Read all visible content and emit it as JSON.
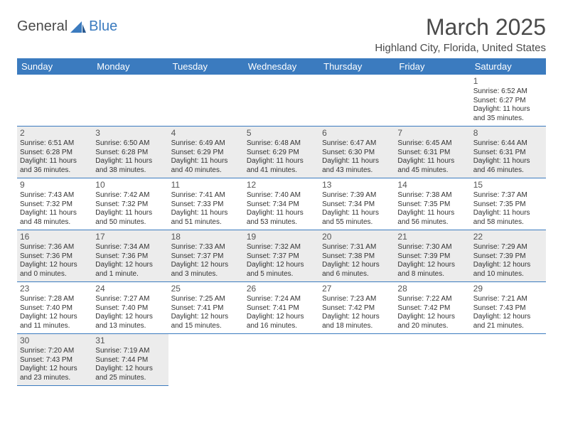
{
  "logo": {
    "part1": "General",
    "part2": "Blue"
  },
  "title": "March 2025",
  "location": "Highland City, Florida, United States",
  "header_bg": "#3b7bbf",
  "header_fg": "#ffffff",
  "shaded_bg": "#ececec",
  "border_color": "#3b7bbf",
  "days": [
    "Sunday",
    "Monday",
    "Tuesday",
    "Wednesday",
    "Thursday",
    "Friday",
    "Saturday"
  ],
  "weeks": [
    [
      null,
      null,
      null,
      null,
      null,
      null,
      {
        "n": "1",
        "sr": "6:52 AM",
        "ss": "6:27 PM",
        "dl": "11 hours and 35 minutes."
      }
    ],
    [
      {
        "n": "2",
        "sr": "6:51 AM",
        "ss": "6:28 PM",
        "dl": "11 hours and 36 minutes."
      },
      {
        "n": "3",
        "sr": "6:50 AM",
        "ss": "6:28 PM",
        "dl": "11 hours and 38 minutes."
      },
      {
        "n": "4",
        "sr": "6:49 AM",
        "ss": "6:29 PM",
        "dl": "11 hours and 40 minutes."
      },
      {
        "n": "5",
        "sr": "6:48 AM",
        "ss": "6:29 PM",
        "dl": "11 hours and 41 minutes."
      },
      {
        "n": "6",
        "sr": "6:47 AM",
        "ss": "6:30 PM",
        "dl": "11 hours and 43 minutes."
      },
      {
        "n": "7",
        "sr": "6:45 AM",
        "ss": "6:31 PM",
        "dl": "11 hours and 45 minutes."
      },
      {
        "n": "8",
        "sr": "6:44 AM",
        "ss": "6:31 PM",
        "dl": "11 hours and 46 minutes."
      }
    ],
    [
      {
        "n": "9",
        "sr": "7:43 AM",
        "ss": "7:32 PM",
        "dl": "11 hours and 48 minutes."
      },
      {
        "n": "10",
        "sr": "7:42 AM",
        "ss": "7:32 PM",
        "dl": "11 hours and 50 minutes."
      },
      {
        "n": "11",
        "sr": "7:41 AM",
        "ss": "7:33 PM",
        "dl": "11 hours and 51 minutes."
      },
      {
        "n": "12",
        "sr": "7:40 AM",
        "ss": "7:34 PM",
        "dl": "11 hours and 53 minutes."
      },
      {
        "n": "13",
        "sr": "7:39 AM",
        "ss": "7:34 PM",
        "dl": "11 hours and 55 minutes."
      },
      {
        "n": "14",
        "sr": "7:38 AM",
        "ss": "7:35 PM",
        "dl": "11 hours and 56 minutes."
      },
      {
        "n": "15",
        "sr": "7:37 AM",
        "ss": "7:35 PM",
        "dl": "11 hours and 58 minutes."
      }
    ],
    [
      {
        "n": "16",
        "sr": "7:36 AM",
        "ss": "7:36 PM",
        "dl": "12 hours and 0 minutes."
      },
      {
        "n": "17",
        "sr": "7:34 AM",
        "ss": "7:36 PM",
        "dl": "12 hours and 1 minute."
      },
      {
        "n": "18",
        "sr": "7:33 AM",
        "ss": "7:37 PM",
        "dl": "12 hours and 3 minutes."
      },
      {
        "n": "19",
        "sr": "7:32 AM",
        "ss": "7:37 PM",
        "dl": "12 hours and 5 minutes."
      },
      {
        "n": "20",
        "sr": "7:31 AM",
        "ss": "7:38 PM",
        "dl": "12 hours and 6 minutes."
      },
      {
        "n": "21",
        "sr": "7:30 AM",
        "ss": "7:39 PM",
        "dl": "12 hours and 8 minutes."
      },
      {
        "n": "22",
        "sr": "7:29 AM",
        "ss": "7:39 PM",
        "dl": "12 hours and 10 minutes."
      }
    ],
    [
      {
        "n": "23",
        "sr": "7:28 AM",
        "ss": "7:40 PM",
        "dl": "12 hours and 11 minutes."
      },
      {
        "n": "24",
        "sr": "7:27 AM",
        "ss": "7:40 PM",
        "dl": "12 hours and 13 minutes."
      },
      {
        "n": "25",
        "sr": "7:25 AM",
        "ss": "7:41 PM",
        "dl": "12 hours and 15 minutes."
      },
      {
        "n": "26",
        "sr": "7:24 AM",
        "ss": "7:41 PM",
        "dl": "12 hours and 16 minutes."
      },
      {
        "n": "27",
        "sr": "7:23 AM",
        "ss": "7:42 PM",
        "dl": "12 hours and 18 minutes."
      },
      {
        "n": "28",
        "sr": "7:22 AM",
        "ss": "7:42 PM",
        "dl": "12 hours and 20 minutes."
      },
      {
        "n": "29",
        "sr": "7:21 AM",
        "ss": "7:43 PM",
        "dl": "12 hours and 21 minutes."
      }
    ],
    [
      {
        "n": "30",
        "sr": "7:20 AM",
        "ss": "7:43 PM",
        "dl": "12 hours and 23 minutes."
      },
      {
        "n": "31",
        "sr": "7:19 AM",
        "ss": "7:44 PM",
        "dl": "12 hours and 25 minutes."
      },
      null,
      null,
      null,
      null,
      null
    ]
  ],
  "labels": {
    "sunrise": "Sunrise:",
    "sunset": "Sunset:",
    "daylight": "Daylight:"
  }
}
